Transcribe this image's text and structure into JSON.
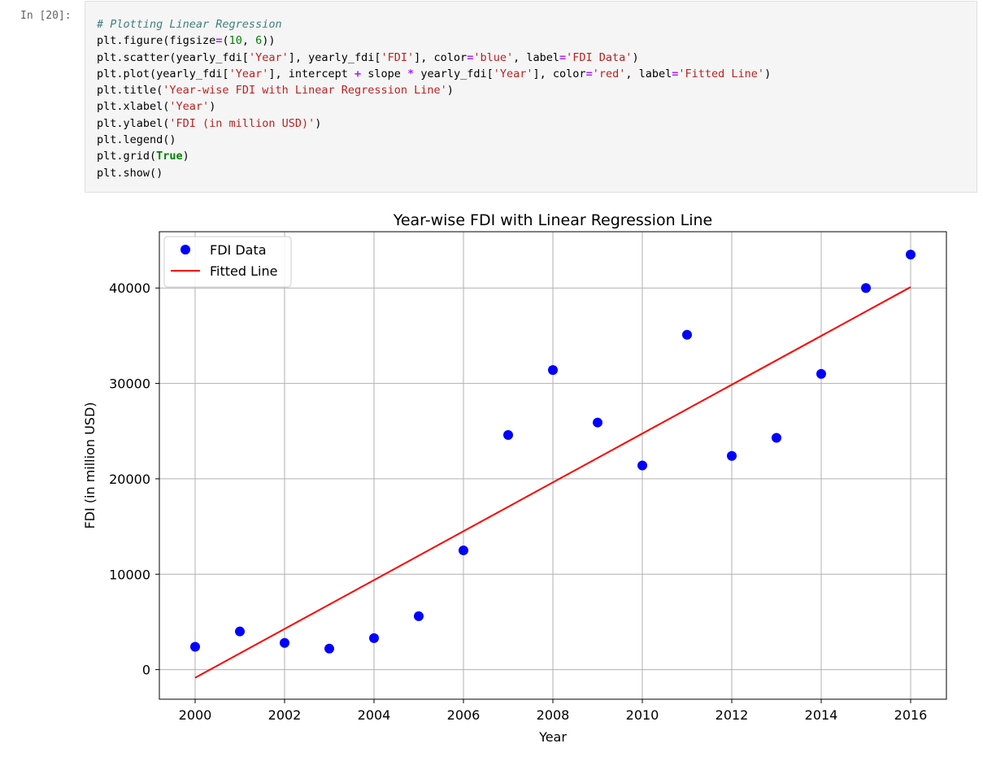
{
  "cell": {
    "prompt": "In [20]:",
    "code_lines": [
      [
        {
          "t": "# Plotting Linear Regression",
          "c": "cm"
        }
      ],
      [
        {
          "t": "plt.figure(figsize"
        },
        {
          "t": "=",
          "c": "op"
        },
        {
          "t": "("
        },
        {
          "t": "10",
          "c": "nu"
        },
        {
          "t": ", "
        },
        {
          "t": "6",
          "c": "nu"
        },
        {
          "t": "))"
        }
      ],
      [
        {
          "t": "plt.scatter(yearly_fdi["
        },
        {
          "t": "'Year'",
          "c": "st"
        },
        {
          "t": "], yearly_fdi["
        },
        {
          "t": "'FDI'",
          "c": "st"
        },
        {
          "t": "], color"
        },
        {
          "t": "=",
          "c": "op"
        },
        {
          "t": "'blue'",
          "c": "st"
        },
        {
          "t": ", label"
        },
        {
          "t": "=",
          "c": "op"
        },
        {
          "t": "'FDI Data'",
          "c": "st"
        },
        {
          "t": ")"
        }
      ],
      [
        {
          "t": "plt.plot(yearly_fdi["
        },
        {
          "t": "'Year'",
          "c": "st"
        },
        {
          "t": "], intercept "
        },
        {
          "t": "+",
          "c": "op"
        },
        {
          "t": " slope "
        },
        {
          "t": "*",
          "c": "op"
        },
        {
          "t": " yearly_fdi["
        },
        {
          "t": "'Year'",
          "c": "st"
        },
        {
          "t": "], color"
        },
        {
          "t": "=",
          "c": "op"
        },
        {
          "t": "'red'",
          "c": "st"
        },
        {
          "t": ", label"
        },
        {
          "t": "=",
          "c": "op"
        },
        {
          "t": "'Fitted Line'",
          "c": "st"
        },
        {
          "t": ")"
        }
      ],
      [
        {
          "t": "plt.title("
        },
        {
          "t": "'Year-wise FDI with Linear Regression Line'",
          "c": "st"
        },
        {
          "t": ")"
        }
      ],
      [
        {
          "t": "plt.xlabel("
        },
        {
          "t": "'Year'",
          "c": "st"
        },
        {
          "t": ")"
        }
      ],
      [
        {
          "t": "plt.ylabel("
        },
        {
          "t": "'FDI (in million USD)'",
          "c": "st"
        },
        {
          "t": ")"
        }
      ],
      [
        {
          "t": "plt.legend()"
        }
      ],
      [
        {
          "t": "plt.grid("
        },
        {
          "t": "True",
          "c": "kw"
        },
        {
          "t": ")"
        }
      ],
      [
        {
          "t": "plt.show()"
        }
      ]
    ]
  },
  "colors": {
    "scatter": "#0000ff",
    "line": "#ff0000",
    "grid": "#b0b0b0"
  },
  "chart_data": {
    "type": "scatter",
    "title": "Year-wise FDI with Linear Regression Line",
    "xlabel": "Year",
    "ylabel": "FDI (in million USD)",
    "xlim": [
      1999.2,
      2016.8
    ],
    "ylim": [
      -3100,
      45900
    ],
    "xticks": [
      2000,
      2002,
      2004,
      2006,
      2008,
      2010,
      2012,
      2014,
      2016
    ],
    "yticks": [
      0,
      10000,
      20000,
      30000,
      40000
    ],
    "grid": true,
    "legend_position": "top-left",
    "series": [
      {
        "name": "FDI Data",
        "kind": "scatter",
        "color": "#0000ff",
        "x": [
          2000,
          2001,
          2002,
          2003,
          2004,
          2005,
          2006,
          2007,
          2008,
          2009,
          2010,
          2011,
          2012,
          2013,
          2014,
          2015,
          2016
        ],
        "y": [
          2400,
          4000,
          2800,
          2200,
          3300,
          5600,
          12500,
          24600,
          31400,
          25900,
          21400,
          35100,
          22400,
          24300,
          31000,
          40000,
          43500
        ]
      },
      {
        "name": "Fitted Line",
        "kind": "line",
        "color": "#ff0000",
        "x": [
          2000,
          2016
        ],
        "y": [
          -850,
          40100
        ]
      }
    ]
  }
}
